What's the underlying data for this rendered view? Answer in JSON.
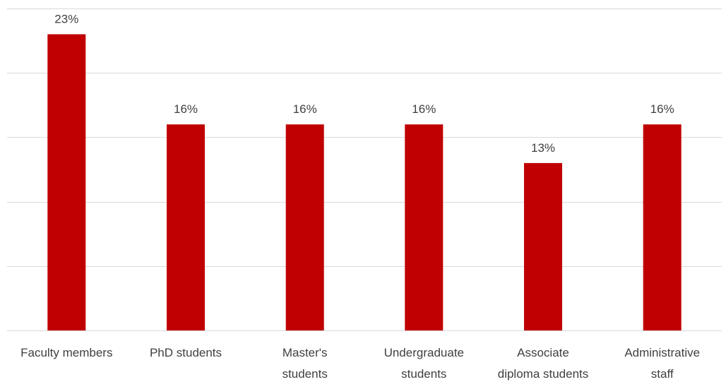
{
  "chart_data": {
    "type": "bar",
    "categories": [
      [
        "Faculty members"
      ],
      [
        "PhD students"
      ],
      [
        "Master's",
        "students"
      ],
      [
        "Undergraduate",
        "students"
      ],
      [
        "Associate",
        "diploma students"
      ],
      [
        "Administrative",
        "staff"
      ]
    ],
    "values": [
      23,
      16,
      16,
      16,
      13,
      16
    ],
    "data_labels": [
      "23%",
      "16%",
      "16%",
      "16%",
      "13%",
      "16%"
    ],
    "bar_color": "#c00000",
    "ylim": [
      0,
      25
    ],
    "gridline_step": 5,
    "grid": true,
    "yaxis_labels_visible": false
  }
}
